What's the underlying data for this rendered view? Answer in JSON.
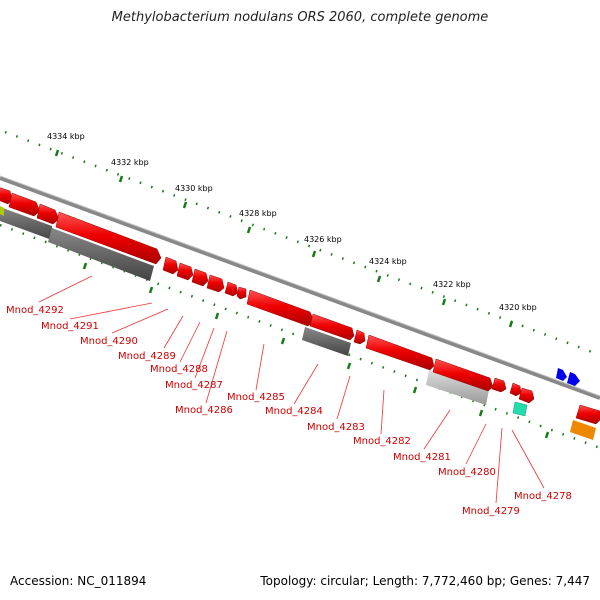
{
  "title": "Methylobacterium nodulans ORS 2060, complete genome",
  "footer": {
    "accession": "Accession: NC_011894",
    "stats": "Topology: circular; Length: 7,772,460 bp; Genes: 7,447"
  },
  "scale_labels": [
    "4334 kbp",
    "4332 kbp",
    "4330 kbp",
    "4328 kbp",
    "4326 kbp",
    "4324 kbp",
    "4322 kbp",
    "4320 kbp"
  ],
  "gene_labels": [
    "Mnod_4292",
    "Mnod_4291",
    "Mnod_4290",
    "Mnod_4289",
    "Mnod_4288",
    "Mnod_4287",
    "Mnod_4286",
    "Mnod_4285",
    "Mnod_4284",
    "Mnod_4283",
    "Mnod_4282",
    "Mnod_4281",
    "Mnod_4280",
    "Mnod_4279",
    "Mnod_4278"
  ],
  "colors": {
    "cds": "#ee0000",
    "backbone": "#888888",
    "tick": "#1a7a1a",
    "label": "#cc0000",
    "dark_feature": "#555555",
    "light_feature": "#bbbbbb",
    "blue_feature": "#0000ee",
    "teal_feature": "#22ddaa",
    "orange_feature": "#ee8800"
  }
}
